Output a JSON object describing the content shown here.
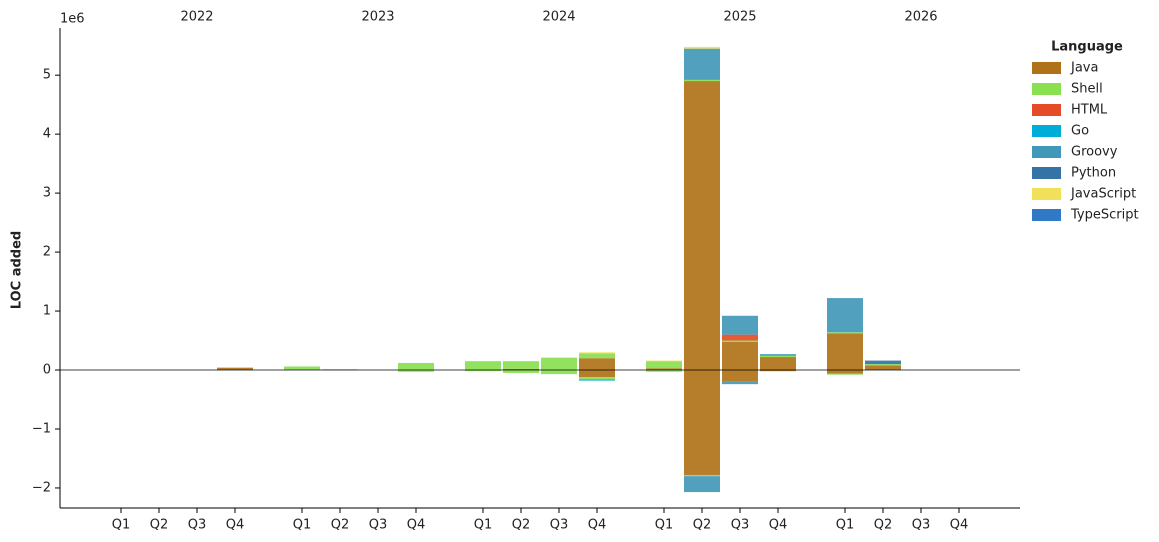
{
  "chart_data": {
    "type": "stacked_bar",
    "y_label": "LOC added",
    "y_offset_label": "1e6",
    "legend_title": "Language",
    "legend_position": "upper right",
    "groups": [
      "2022",
      "2023",
      "2024",
      "2025",
      "2026"
    ],
    "categories": [
      "Q1",
      "Q2",
      "Q3",
      "Q4",
      "Q1",
      "Q2",
      "Q3",
      "Q4",
      "Q1",
      "Q2",
      "Q3",
      "Q4",
      "Q1",
      "Q2",
      "Q3",
      "Q4",
      "Q1",
      "Q2",
      "Q3",
      "Q4"
    ],
    "ylim": [
      -2.34,
      5.8
    ],
    "yticks": [
      {
        "value": -2,
        "label": "−2"
      },
      {
        "value": -1,
        "label": "−1"
      },
      0,
      1,
      2,
      3,
      4,
      5
    ],
    "series": [
      {
        "name": "Java",
        "color": "#b07219",
        "values": [
          0,
          0,
          0,
          0.04,
          0,
          0.01,
          0,
          0,
          0,
          0.02,
          0,
          0.2,
          0.03,
          4.9,
          0.48,
          0.22,
          0.62,
          0.08,
          0,
          0
        ],
        "neg_values": [
          0,
          0,
          0,
          0,
          0,
          0,
          0,
          0,
          0,
          0,
          0,
          -0.12,
          0,
          -1.78,
          -0.2,
          -0.02,
          -0.06,
          0,
          0,
          0
        ]
      },
      {
        "name": "Shell",
        "color": "#89e051",
        "values": [
          0,
          0,
          0,
          0,
          0.06,
          0,
          0,
          0.12,
          0.15,
          0.13,
          0.21,
          0.08,
          0.12,
          0.02,
          0.02,
          0.02,
          0.02,
          0.02,
          0,
          0
        ],
        "neg_values": [
          0,
          0,
          0,
          0,
          0,
          0,
          0,
          -0.03,
          -0.02,
          -0.05,
          -0.07,
          -0.04,
          -0.03,
          -0.02,
          0,
          0,
          -0.02,
          0,
          0,
          0
        ]
      },
      {
        "name": "HTML",
        "color": "#e34c26",
        "values": [
          0,
          0,
          0,
          0,
          0,
          0,
          0,
          0,
          0,
          0,
          0,
          0,
          0,
          0,
          0.1,
          0,
          0,
          0,
          0,
          0
        ],
        "neg_values": [
          0,
          0,
          0,
          0,
          0,
          0,
          0,
          0,
          0,
          0,
          0,
          0,
          0,
          0,
          0,
          0,
          0,
          0,
          0,
          0
        ]
      },
      {
        "name": "Go",
        "color": "#00add8",
        "values": [
          0,
          0,
          0,
          0,
          0,
          0,
          0,
          0,
          0,
          0,
          0,
          0,
          0,
          0,
          0,
          0,
          0,
          0,
          0,
          0
        ],
        "neg_values": [
          0,
          0,
          0,
          0,
          0,
          0,
          0,
          0,
          0,
          0,
          0,
          -0.02,
          0,
          0,
          0,
          0,
          0,
          0,
          0,
          0
        ]
      },
      {
        "name": "Groovy",
        "color": "#4298b8",
        "values": [
          0,
          0,
          0,
          0,
          0,
          0,
          0,
          0,
          0,
          0,
          0,
          0,
          0,
          0.53,
          0.32,
          0.03,
          0.58,
          0,
          0,
          0
        ],
        "neg_values": [
          0,
          0,
          0,
          0,
          0,
          0,
          0,
          0,
          0,
          0,
          0,
          0,
          0,
          -0.27,
          -0.04,
          0,
          0,
          0,
          0,
          0
        ]
      },
      {
        "name": "Python",
        "color": "#3572a5",
        "values": [
          0,
          0,
          0,
          0,
          0,
          0,
          0,
          0,
          0,
          0,
          0,
          0,
          0,
          0,
          0,
          0,
          0,
          0.06,
          0,
          0
        ],
        "neg_values": [
          0,
          0,
          0,
          0,
          0,
          0,
          0,
          0,
          0,
          0,
          0,
          0,
          0,
          0,
          0,
          0,
          0,
          0,
          0,
          0
        ]
      },
      {
        "name": "JavaScript",
        "color": "#f1e05a",
        "values": [
          0,
          0,
          0,
          0,
          0,
          0,
          0,
          0,
          0,
          0,
          0,
          0.02,
          0.01,
          0.03,
          0,
          0,
          0,
          0,
          0,
          0
        ],
        "neg_values": [
          0,
          0,
          0,
          0,
          0,
          0,
          0,
          0,
          0,
          0,
          0,
          0,
          0,
          0,
          0,
          0,
          0,
          0,
          0,
          0
        ]
      },
      {
        "name": "TypeScript",
        "color": "#3178c6",
        "values": [
          0,
          0,
          0,
          0,
          0,
          0,
          0,
          0,
          0,
          0,
          0,
          0,
          0,
          0,
          0,
          0,
          0,
          0,
          0,
          0
        ],
        "neg_values": [
          0,
          0,
          0,
          0,
          0,
          0,
          0,
          0,
          0,
          0,
          0,
          0,
          0,
          0,
          0,
          0,
          0,
          0,
          0,
          0
        ]
      }
    ]
  }
}
